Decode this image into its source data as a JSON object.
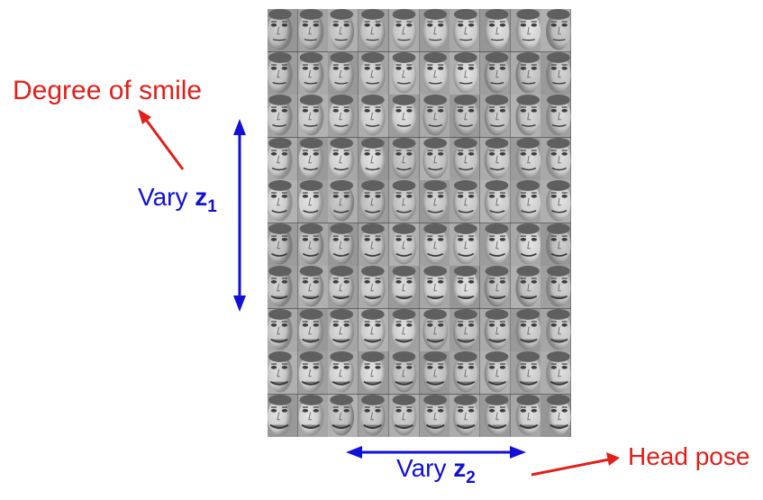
{
  "annotations": {
    "smile": "Degree of smile",
    "head_pose": "Head pose"
  },
  "axes": {
    "z1": {
      "prefix": "Vary ",
      "var": "z",
      "sub": "1"
    },
    "z2": {
      "prefix": "Vary ",
      "var": "z",
      "sub": "2"
    }
  },
  "grid": {
    "rows": 10,
    "cols": 10
  },
  "colors": {
    "red": "#e0201b",
    "blue": "#1010d8"
  }
}
